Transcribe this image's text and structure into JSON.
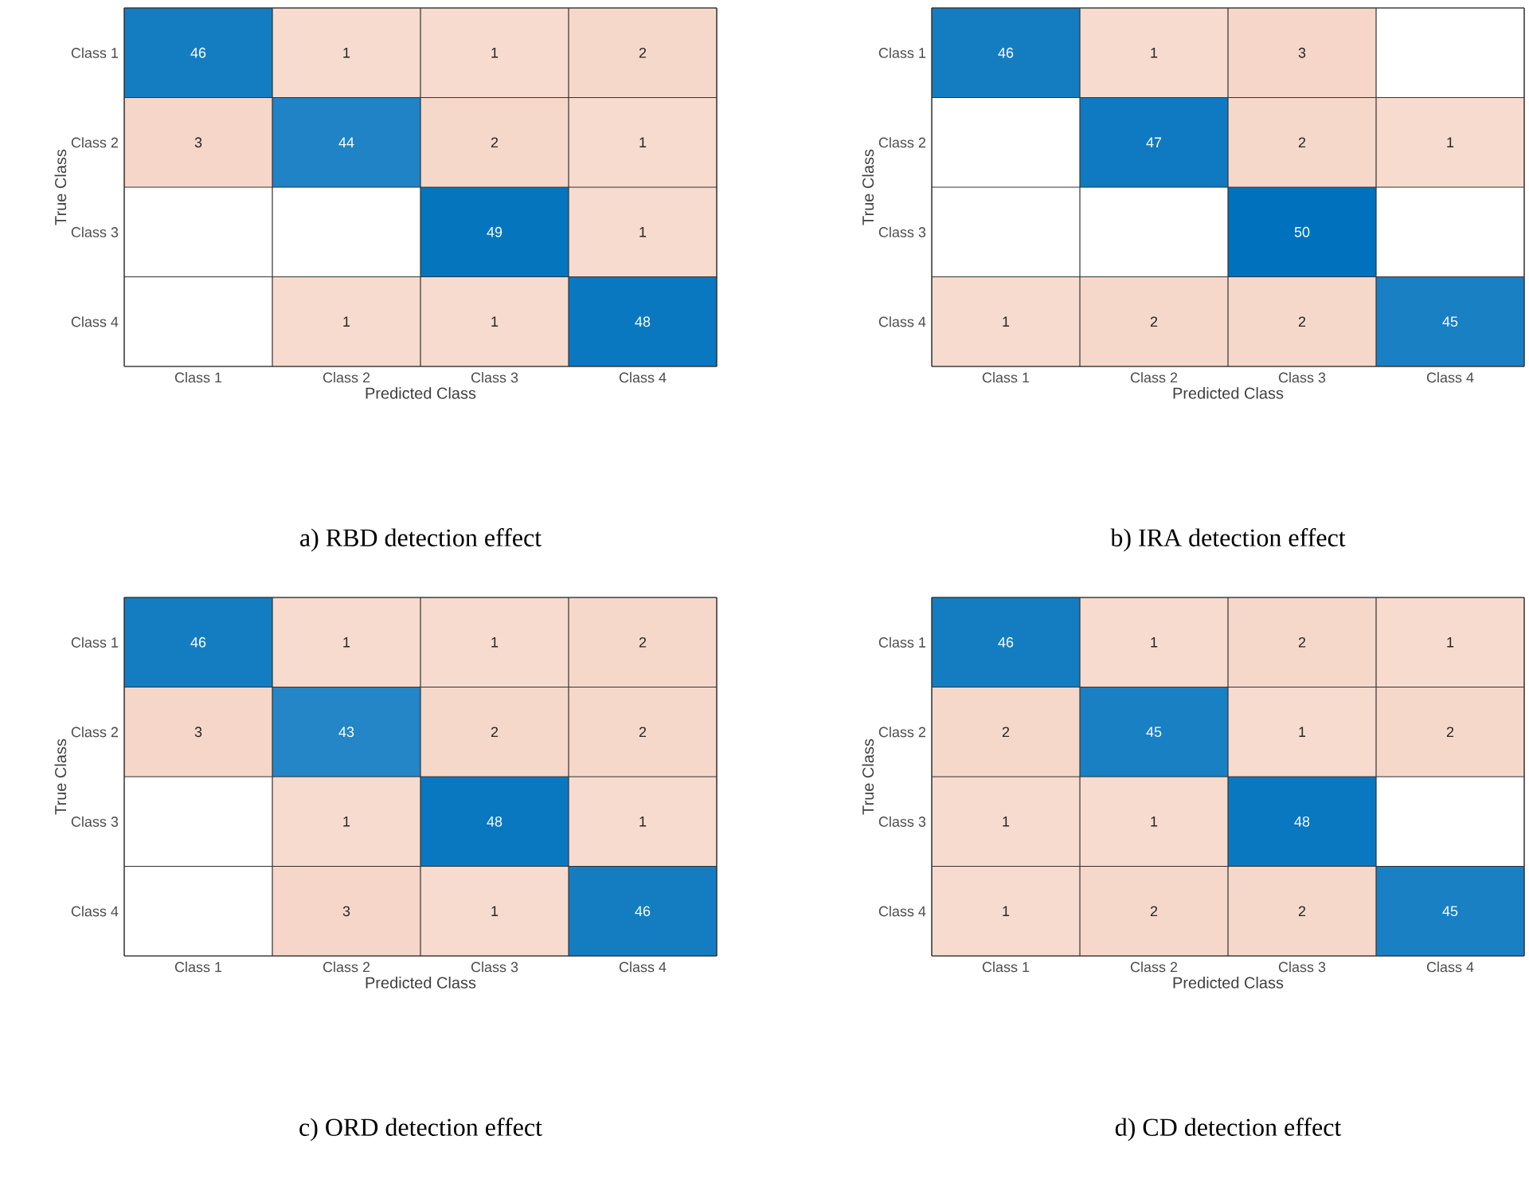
{
  "chart_data": [
    {
      "type": "heatmap",
      "title": "a) RBD detection effect",
      "xlabel": "Predicted Class",
      "ylabel": "True Class",
      "categories": [
        "Class 1",
        "Class 2",
        "Class 3",
        "Class 4"
      ],
      "y_categories": [
        "Class 1",
        "Class 2",
        "Class 3",
        "Class 4"
      ],
      "data_labels": true,
      "cells": [
        [
          46,
          1,
          1,
          2
        ],
        [
          3,
          44,
          2,
          1
        ],
        [
          null,
          null,
          49,
          1
        ],
        [
          null,
          1,
          1,
          48
        ]
      ]
    },
    {
      "type": "heatmap",
      "title": "b) IRA detection effect",
      "xlabel": "Predicted Class",
      "ylabel": "True Class",
      "categories": [
        "Class 1",
        "Class 2",
        "Class 3",
        "Class 4"
      ],
      "y_categories": [
        "Class 1",
        "Class 2",
        "Class 3",
        "Class 4"
      ],
      "data_labels": true,
      "cells": [
        [
          46,
          1,
          3,
          null
        ],
        [
          null,
          47,
          2,
          1
        ],
        [
          null,
          null,
          50,
          null
        ],
        [
          1,
          2,
          2,
          45
        ]
      ]
    },
    {
      "type": "heatmap",
      "title": "c) ORD detection effect",
      "xlabel": "Predicted Class",
      "ylabel": "True Class",
      "categories": [
        "Class 1",
        "Class 2",
        "Class 3",
        "Class 4"
      ],
      "y_categories": [
        "Class 1",
        "Class 2",
        "Class 3",
        "Class 4"
      ],
      "data_labels": true,
      "cells": [
        [
          46,
          1,
          1,
          2
        ],
        [
          3,
          43,
          2,
          2
        ],
        [
          null,
          1,
          48,
          1
        ],
        [
          null,
          3,
          1,
          46
        ]
      ]
    },
    {
      "type": "heatmap",
      "title": "d) CD detection effect",
      "xlabel": "Predicted Class",
      "ylabel": "True Class",
      "categories": [
        "Class 1",
        "Class 2",
        "Class 3",
        "Class 4"
      ],
      "y_categories": [
        "Class 1",
        "Class 2",
        "Class 3",
        "Class 4"
      ],
      "data_labels": true,
      "cells": [
        [
          46,
          1,
          2,
          1
        ],
        [
          2,
          45,
          1,
          2
        ],
        [
          1,
          1,
          48,
          null
        ],
        [
          1,
          2,
          2,
          45
        ]
      ]
    }
  ]
}
